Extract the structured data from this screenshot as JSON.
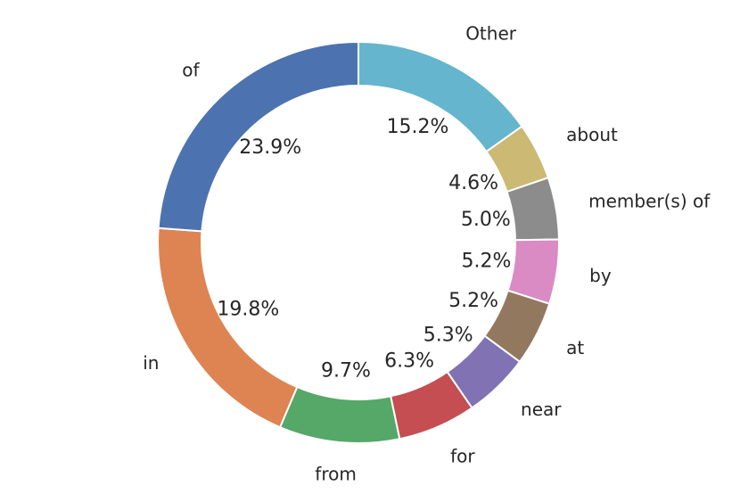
{
  "chart_data": {
    "type": "pie",
    "variant": "donut",
    "start_angle_deg": 90,
    "direction": "clockwise",
    "title": "",
    "legend": "none",
    "slices": [
      {
        "label": "Other",
        "value": 15.2,
        "pct_text": "15.2%",
        "color": "#64b5cd"
      },
      {
        "label": "about",
        "value": 4.6,
        "pct_text": "4.6%",
        "color": "#ccb974"
      },
      {
        "label": "member(s) of",
        "value": 5.0,
        "pct_text": "5.0%",
        "color": "#8c8c8c"
      },
      {
        "label": "by",
        "value": 5.2,
        "pct_text": "5.2%",
        "color": "#da8bc3"
      },
      {
        "label": "at",
        "value": 5.2,
        "pct_text": "5.2%",
        "color": "#937860"
      },
      {
        "label": "near",
        "value": 5.3,
        "pct_text": "5.3%",
        "color": "#8172b3"
      },
      {
        "label": "for",
        "value": 6.3,
        "pct_text": "6.3%",
        "color": "#c44e52"
      },
      {
        "label": "from",
        "value": 9.7,
        "pct_text": "9.7%",
        "color": "#55a868"
      },
      {
        "label": "in",
        "value": 19.8,
        "pct_text": "19.8%",
        "color": "#dd8452"
      },
      {
        "label": "of",
        "value": 23.9,
        "pct_text": "23.9%",
        "color": "#4c72b0"
      }
    ]
  }
}
